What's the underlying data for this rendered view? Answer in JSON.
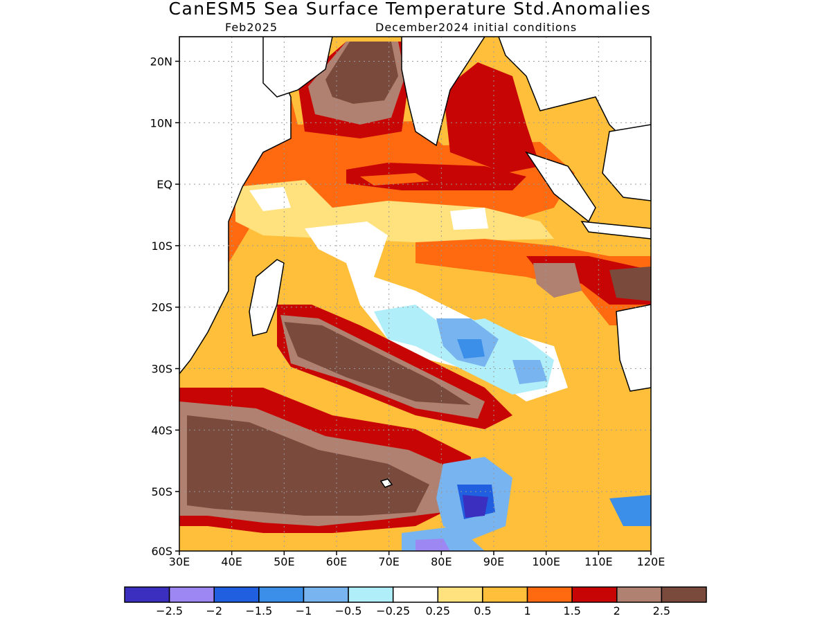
{
  "title": "CanESM5 Sea Surface Temperature Std.Anomalies",
  "subtitle_left": "Feb2025",
  "subtitle_right": "December2024 initial conditions",
  "lat_labels": [
    "20N",
    "10N",
    "EQ",
    "10S",
    "20S",
    "30S",
    "40S",
    "50S",
    "60S"
  ],
  "lon_labels": [
    "30E",
    "40E",
    "50E",
    "60E",
    "70E",
    "80E",
    "90E",
    "100E",
    "110E",
    "120E"
  ],
  "colorbar": {
    "colors": [
      "#3b2fbf",
      "#9d87f2",
      "#1f5fe0",
      "#3b8fe8",
      "#78b4f0",
      "#b0eefa",
      "#ffffff",
      "#ffe27e",
      "#ffbf3a",
      "#ff6a10",
      "#c80505",
      "#b08070",
      "#7a4a3c"
    ],
    "labels": [
      "-2.5",
      "-2",
      "-1.5",
      "-1",
      "-0.5",
      "-0.25",
      "0.25",
      "0.5",
      "1",
      "1.5",
      "2",
      "2.5"
    ]
  }
}
